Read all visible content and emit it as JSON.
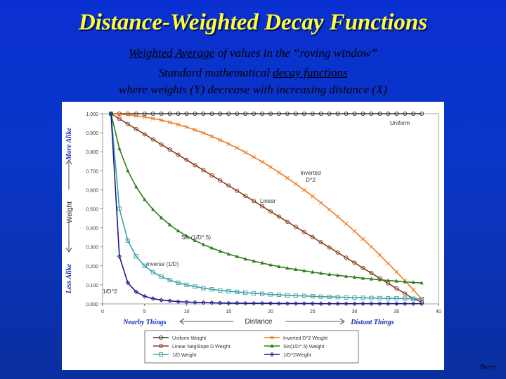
{
  "slide": {
    "title": "Distance-Weighted Decay Functions",
    "line1_prefix": "Weighted Average",
    "line1_suffix": " of values in the “roving window”",
    "line2_prefix": "Standard mathematical ",
    "line2_highlight": "decay functions",
    "line3": "where weights (Y) decrease with increasing distance (X)",
    "credit": "Berry"
  },
  "chart_data": {
    "type": "line",
    "xlabel": "Distance",
    "ylabel": "Weight",
    "xlim": [
      0,
      40
    ],
    "ylim": [
      0,
      1
    ],
    "x_ticks": [
      "0",
      "5",
      "10",
      "15",
      "20",
      "25",
      "30",
      "35",
      "40"
    ],
    "y_ticks": [
      "0.000",
      "0.100",
      "0.200",
      "0.300",
      "0.400",
      "0.500",
      "0.600",
      "0.700",
      "0.800",
      "0.900",
      "1.000"
    ],
    "y_top_label": "More Alike",
    "y_bottom_label": "Less Alike",
    "x_left_label": "Nearby Things",
    "x_right_label": "Distant Things",
    "annotations": [
      "Uniform",
      "Inverted D^2",
      "Linear",
      "Sin (1/D^.5)",
      "Inverse (1/D)",
      "1/D^2"
    ],
    "x": [
      1,
      2,
      3,
      4,
      5,
      6,
      7,
      8,
      9,
      10,
      11,
      12,
      13,
      14,
      15,
      16,
      17,
      18,
      19,
      20,
      21,
      22,
      23,
      24,
      25,
      26,
      27,
      28,
      29,
      30,
      31,
      32,
      33,
      34,
      35,
      36,
      37,
      38
    ],
    "series": [
      {
        "name": "Uniform Weight",
        "color": "#333333",
        "marker": "circle",
        "values": [
          1,
          1,
          1,
          1,
          1,
          1,
          1,
          1,
          1,
          1,
          1,
          1,
          1,
          1,
          1,
          1,
          1,
          1,
          1,
          1,
          1,
          1,
          1,
          1,
          1,
          1,
          1,
          1,
          1,
          1,
          1,
          1,
          1,
          1,
          1,
          1,
          1,
          1
        ]
      },
      {
        "name": "Inverted D^2 Weight",
        "color": "#f07820",
        "marker": "x",
        "values": [
          1.0,
          0.998,
          0.994,
          0.989,
          0.983,
          0.975,
          0.966,
          0.955,
          0.943,
          0.93,
          0.915,
          0.899,
          0.881,
          0.862,
          0.841,
          0.82,
          0.797,
          0.772,
          0.747,
          0.72,
          0.691,
          0.662,
          0.631,
          0.599,
          0.566,
          0.532,
          0.496,
          0.459,
          0.421,
          0.382,
          0.341,
          0.3,
          0.257,
          0.213,
          0.168,
          0.122,
          0.074,
          0.025
        ]
      },
      {
        "name": "Linear NegSlope D Weight",
        "color": "#8b3a1a",
        "marker": "circle",
        "values": [
          1.0,
          0.973,
          0.946,
          0.919,
          0.892,
          0.865,
          0.838,
          0.811,
          0.784,
          0.757,
          0.73,
          0.703,
          0.676,
          0.649,
          0.622,
          0.595,
          0.568,
          0.541,
          0.514,
          0.486,
          0.459,
          0.432,
          0.405,
          0.378,
          0.351,
          0.324,
          0.297,
          0.27,
          0.243,
          0.216,
          0.189,
          0.162,
          0.135,
          0.108,
          0.081,
          0.054,
          0.027,
          0.01
        ]
      },
      {
        "name": "Sin(1/D^.5) Weight",
        "color": "#2e7d1e",
        "marker": "triangle",
        "values": [
          1.0,
          0.816,
          0.7,
          0.615,
          0.549,
          0.496,
          0.453,
          0.416,
          0.384,
          0.357,
          0.333,
          0.312,
          0.294,
          0.277,
          0.262,
          0.249,
          0.236,
          0.225,
          0.215,
          0.205,
          0.196,
          0.188,
          0.181,
          0.174,
          0.167,
          0.161,
          0.155,
          0.15,
          0.145,
          0.14,
          0.135,
          0.131,
          0.127,
          0.123,
          0.12,
          0.116,
          0.113,
          0.11
        ]
      },
      {
        "name": "1/D Weight",
        "color": "#3aa0a8",
        "marker": "square",
        "values": [
          1.0,
          0.5,
          0.333,
          0.25,
          0.2,
          0.167,
          0.143,
          0.125,
          0.111,
          0.1,
          0.091,
          0.083,
          0.077,
          0.071,
          0.067,
          0.063,
          0.059,
          0.056,
          0.053,
          0.05,
          0.048,
          0.045,
          0.043,
          0.042,
          0.04,
          0.038,
          0.037,
          0.036,
          0.034,
          0.033,
          0.032,
          0.031,
          0.03,
          0.029,
          0.029,
          0.028,
          0.027,
          0.026
        ]
      },
      {
        "name": "1/D^2Weight",
        "color": "#1a1a8c",
        "marker": "diamond",
        "values": [
          1.0,
          0.25,
          0.111,
          0.063,
          0.04,
          0.028,
          0.02,
          0.016,
          0.012,
          0.01,
          0.008,
          0.007,
          0.006,
          0.005,
          0.004,
          0.004,
          0.003,
          0.003,
          0.003,
          0.003,
          0.002,
          0.002,
          0.002,
          0.002,
          0.002,
          0.001,
          0.001,
          0.001,
          0.001,
          0.001,
          0.001,
          0.001,
          0.001,
          0.001,
          0.001,
          0.001,
          0.001,
          0.001
        ]
      }
    ]
  }
}
